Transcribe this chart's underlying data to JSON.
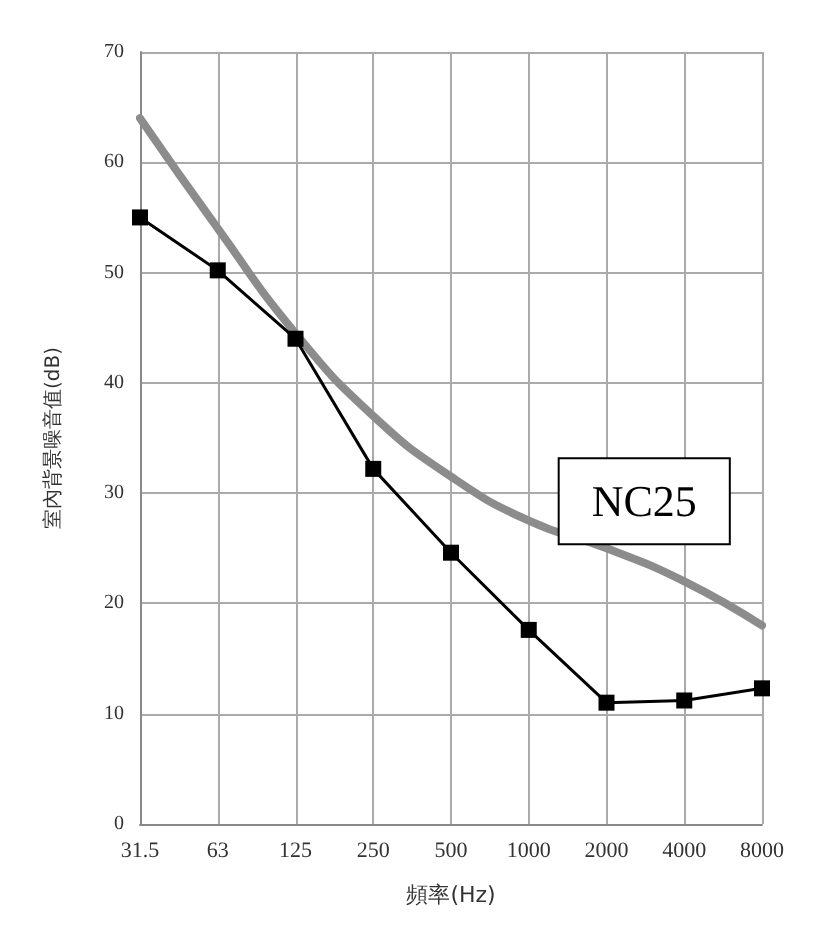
{
  "chart_data": {
    "type": "line",
    "xlabel": "頻率(Hz)",
    "ylabel": "室內背景噪音值(dB)",
    "categories": [
      "31.5",
      "63",
      "125",
      "250",
      "500",
      "1000",
      "2000",
      "4000",
      "8000"
    ],
    "series": [
      {
        "name": "NC25",
        "color": "#8c8c8c",
        "marker": "none",
        "values": [
          64,
          54,
          44.5,
          37,
          31.5,
          27.5,
          25,
          22,
          18
        ]
      },
      {
        "color": "#000000",
        "marker": "square",
        "values": [
          55,
          50.2,
          44,
          32.2,
          24.6,
          17.6,
          11,
          11.2,
          12.3
        ]
      }
    ],
    "ylim": [
      0,
      70
    ],
    "yticks": [
      0,
      10,
      20,
      30,
      40,
      50,
      60,
      70
    ],
    "grid": true,
    "legend": false
  }
}
